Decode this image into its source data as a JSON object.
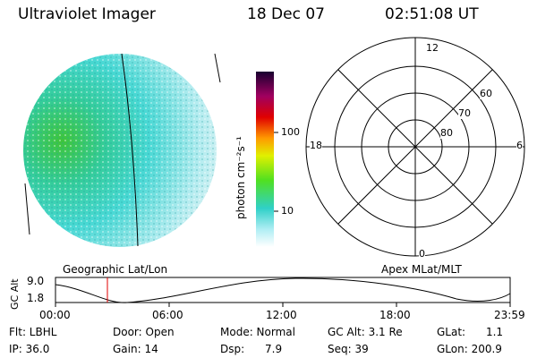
{
  "header": {
    "instrument": "Ultraviolet Imager",
    "date": "18 Dec 07",
    "time": "02:51:08 UT"
  },
  "colorbar": {
    "unit_label": "photon cm⁻²s⁻¹",
    "ticks": [
      "100",
      "10"
    ]
  },
  "polar_plot": {
    "labels": {
      "mlt_top": "12",
      "mlt_bottom": "0",
      "mlt_left": "18",
      "mlt_right": "6",
      "lat_60": "60",
      "lat_70": "70",
      "lat_80": "80"
    }
  },
  "altitude_panel": {
    "left_caption": "Geographic Lat/Lon",
    "right_caption": "Apex MLat/MLT",
    "ylabel": "GC Alt",
    "y_ticks": [
      "9.0",
      "1.8"
    ],
    "x_ticks": [
      "00:00",
      "06:00",
      "12:00",
      "18:00",
      "23:59"
    ]
  },
  "status": {
    "flt": "Flt: LBHL",
    "ip": "IP: 36.0",
    "door": "Door: Open",
    "gain": "Gain: 14",
    "mode": "Mode: Normal",
    "dsp": "Dsp:      7.9",
    "gc_alt": "GC Alt: 3.1 Re",
    "seq": "Seq: 39",
    "glat": "GLat:      1.1",
    "glon": "GLon: 200.9"
  },
  "colors": {
    "bright": "#3ec43a",
    "mid": "#30d0c8",
    "low": "#a8e8ee",
    "marker": "#e00000"
  }
}
